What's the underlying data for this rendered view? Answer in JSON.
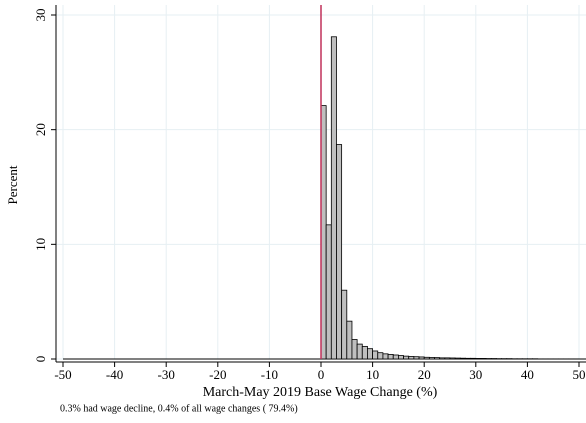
{
  "chart_data": {
    "type": "histogram",
    "y_label": "Percent",
    "x_label": "March-May 2019 Base Wage Change (%)",
    "note": "0.3% had wage decline,   0.4% of all wage changes ( 79.4%)",
    "bins": [
      0,
      1,
      2,
      3,
      4,
      5,
      6,
      7,
      8,
      9,
      10,
      11,
      12,
      13,
      14,
      15,
      16,
      17,
      18,
      19,
      20,
      21,
      22,
      23,
      24,
      25,
      26,
      27,
      28,
      29,
      30,
      31,
      32,
      33,
      34,
      35,
      36,
      37,
      38,
      39,
      40,
      41,
      42,
      43,
      44,
      45,
      46,
      47,
      48,
      49,
      50
    ],
    "counts": [
      22.1,
      11.7,
      28.1,
      18.7,
      6.0,
      3.3,
      1.7,
      1.3,
      1.1,
      0.9,
      0.7,
      0.55,
      0.45,
      0.4,
      0.35,
      0.3,
      0.25,
      0.22,
      0.2,
      0.18,
      0.15,
      0.13,
      0.12,
      0.1,
      0.1,
      0.09,
      0.08,
      0.07,
      0.06,
      0.06,
      0.05,
      0.05,
      0.04,
      0.04,
      0.03,
      0.03,
      0.03,
      0.02,
      0.02,
      0.02,
      0.02,
      0.02,
      0.01,
      0.01,
      0.01,
      0.01,
      0.01,
      0.01,
      0.01,
      0.01
    ],
    "color": "#bfbfbf",
    "xlim": [
      -50,
      50
    ],
    "xticks": [
      -50,
      -40,
      -30,
      -20,
      -10,
      0,
      10,
      20,
      30,
      40,
      50
    ],
    "ylim": [
      0,
      30
    ],
    "yticks": [
      0,
      10,
      20,
      30
    ],
    "grid": true,
    "vline": 0,
    "vline_color": "#c0305a"
  }
}
